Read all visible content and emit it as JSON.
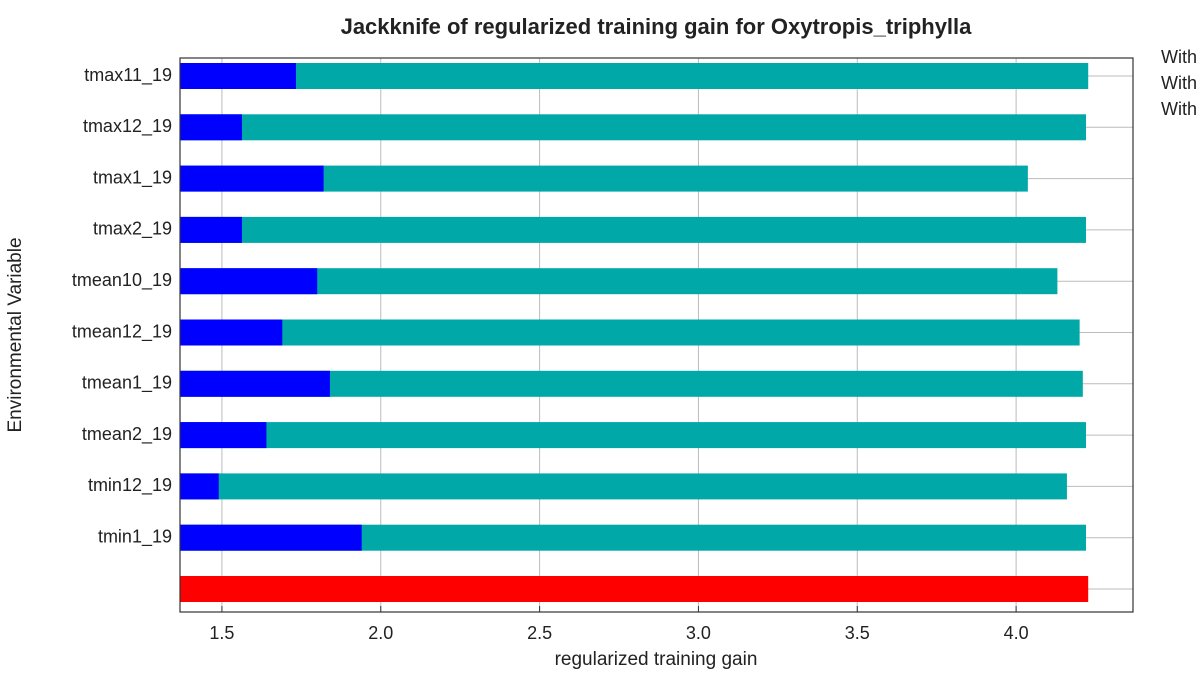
{
  "chart_data": {
    "type": "bar",
    "orientation": "horizontal",
    "title": "Jackknife of regularized training gain for Oxytropis_triphylla",
    "x_label": "regularized training gain",
    "y_label": "Environmental Variable",
    "categories": [
      "tmax11_19",
      "tmax12_19",
      "tmax1_19",
      "tmax2_19",
      "tmean10_19",
      "tmean12_19",
      "tmean1_19",
      "tmean2_19",
      "tmin12_19",
      "tmin1_19",
      null
    ],
    "series": [
      {
        "name": "With",
        "color": "#00a8a8",
        "values": [
          4.227,
          4.22,
          4.037,
          4.22,
          4.13,
          4.2,
          4.21,
          4.22,
          4.16,
          4.22,
          null
        ]
      },
      {
        "name": "With",
        "color": "#0000ff",
        "values": [
          1.733,
          1.563,
          1.82,
          1.563,
          1.8,
          1.69,
          1.84,
          1.64,
          1.49,
          1.94,
          null
        ]
      },
      {
        "name": "With",
        "color": "#ff0000",
        "values": [
          null,
          null,
          null,
          null,
          null,
          null,
          null,
          null,
          null,
          null,
          4.227
        ]
      }
    ],
    "xlim": [
      1.368,
      4.368
    ],
    "xticks": [
      1.5,
      {
        "value": 2,
        "label": "2.0"
      },
      2.5,
      {
        "value": 3,
        "label": "3.0"
      },
      3.5,
      {
        "value": 4,
        "label": "4.0"
      }
    ],
    "grid": true
  }
}
